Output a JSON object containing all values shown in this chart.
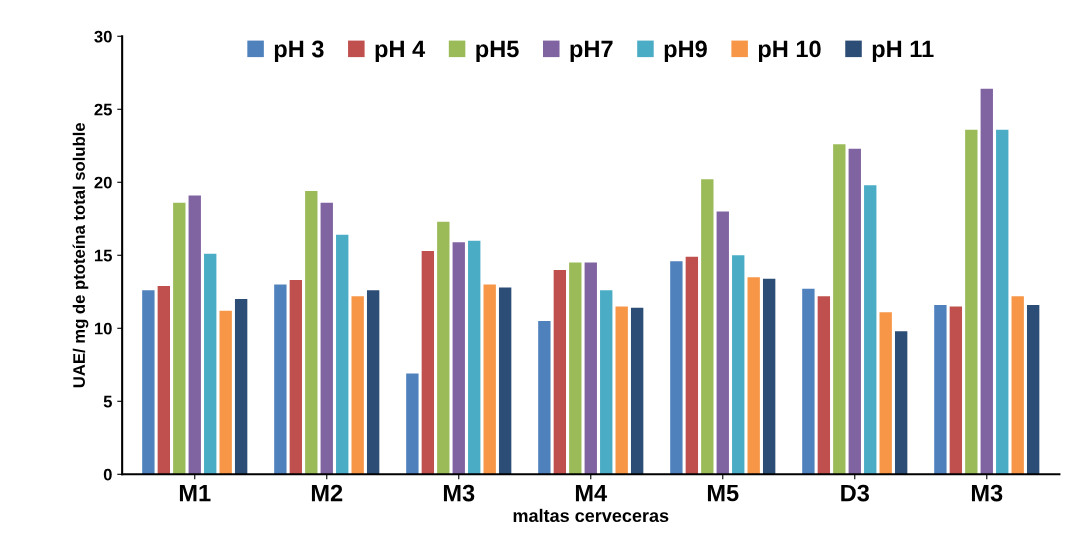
{
  "chart_data": {
    "type": "bar",
    "xlabel": "maltas cerveceras",
    "ylabel": "UAE/ mg de ptoteína total soluble",
    "categories": [
      "M1",
      "M2",
      "M3",
      "M4",
      "M5",
      "D3",
      "M3"
    ],
    "series": [
      {
        "name": "pH 3",
        "color": "#4f81bd",
        "values": [
          12.6,
          13.0,
          6.9,
          10.5,
          14.6,
          12.7,
          11.6
        ]
      },
      {
        "name": "pH 4",
        "color": "#c0504d",
        "values": [
          12.9,
          13.3,
          15.3,
          14.0,
          14.9,
          12.2,
          11.5
        ]
      },
      {
        "name": "pH5",
        "color": "#9bbb59",
        "values": [
          18.6,
          19.4,
          17.3,
          14.5,
          20.2,
          22.6,
          23.6
        ]
      },
      {
        "name": "pH7",
        "color": "#8064a2",
        "values": [
          19.1,
          18.6,
          15.9,
          14.5,
          18.0,
          22.3,
          26.4
        ]
      },
      {
        "name": "pH9",
        "color": "#4bacc6",
        "values": [
          15.1,
          16.4,
          16.0,
          12.6,
          15.0,
          19.8,
          23.6
        ]
      },
      {
        "name": "pH 10",
        "color": "#f79646",
        "values": [
          11.2,
          12.2,
          13.0,
          11.5,
          13.5,
          11.1,
          12.2
        ]
      },
      {
        "name": "pH 11",
        "color": "#2c4d75",
        "values": [
          12.0,
          12.6,
          12.8,
          11.4,
          13.4,
          9.8,
          11.6
        ]
      }
    ],
    "ylim": [
      0,
      30
    ],
    "yticks": [
      0,
      5,
      10,
      15,
      20,
      25,
      30
    ],
    "grid": false,
    "legend": "top"
  }
}
